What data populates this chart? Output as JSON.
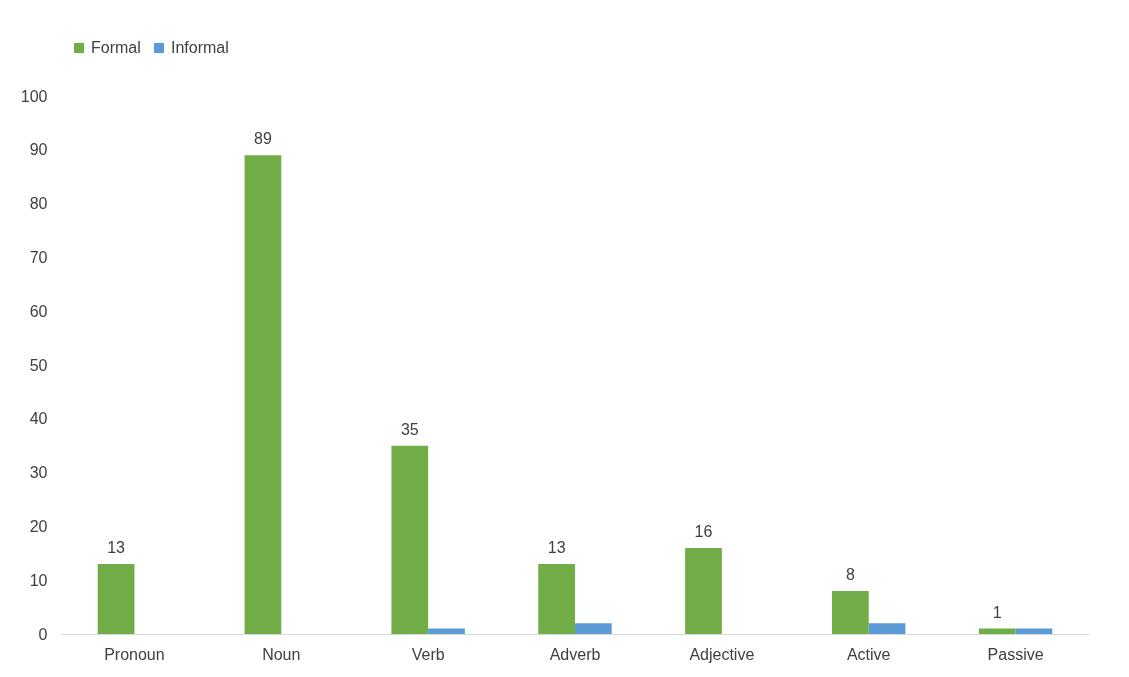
{
  "chart_data": {
    "type": "bar",
    "categories": [
      "Pronoun",
      "Noun",
      "Verb",
      "Adverb",
      "Adjective",
      "Active",
      "Passive"
    ],
    "series": [
      {
        "name": "Formal",
        "color": "#70ad47",
        "values": [
          13,
          89,
          35,
          13,
          16,
          8,
          1
        ],
        "value_labels": [
          "13",
          "89",
          "35",
          "13",
          "16",
          "8",
          "1"
        ]
      },
      {
        "name": "Informal",
        "color": "#5b9bd5",
        "values": [
          0,
          0,
          1,
          2,
          0,
          2,
          1
        ]
      }
    ],
    "ylim": [
      0,
      100
    ],
    "yticks": [
      0,
      10,
      20,
      30,
      40,
      50,
      60,
      70,
      80,
      90,
      100
    ],
    "grid": false,
    "legend": "top"
  }
}
